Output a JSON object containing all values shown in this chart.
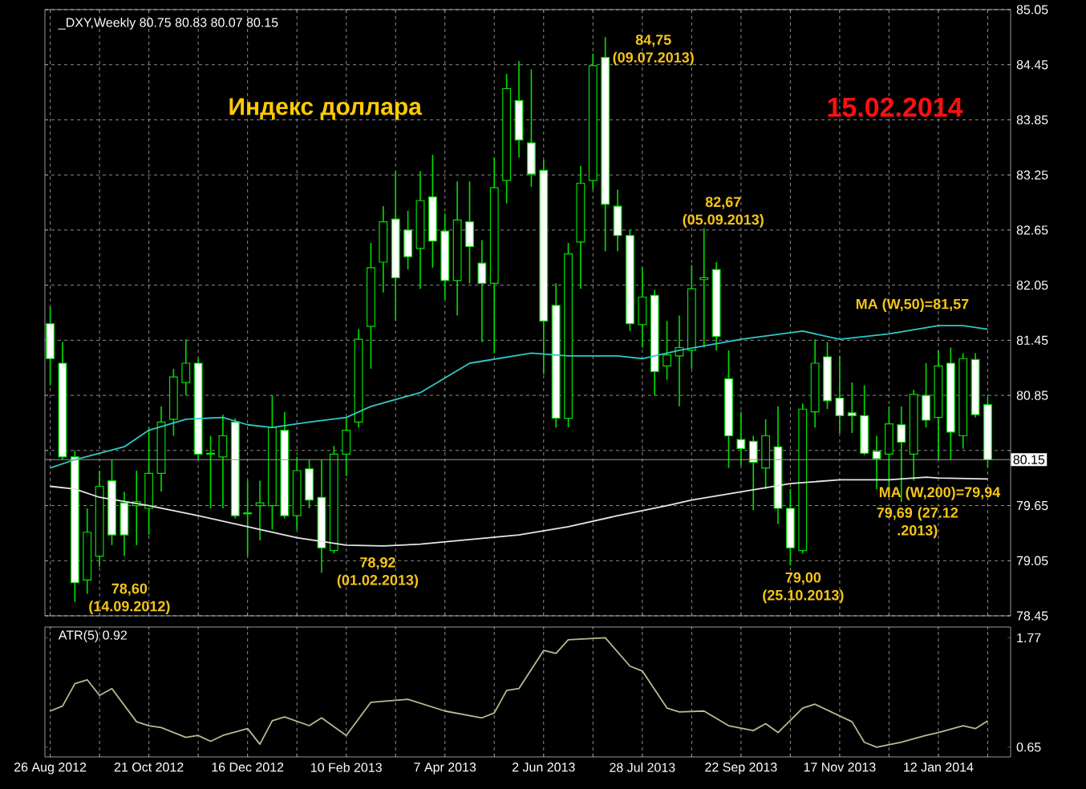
{
  "chart_data": [
    {
      "type": "candlestick",
      "title": "_DXY,Weekly 80.75 80.83 80.07 80.15",
      "x": [
        "2012-08-26",
        "2012-09-02",
        "2012-09-09",
        "2012-09-16",
        "2012-09-23",
        "2012-09-30",
        "2012-10-07",
        "2012-10-14",
        "2012-10-21",
        "2012-10-28",
        "2012-11-04",
        "2012-11-11",
        "2012-11-18",
        "2012-11-25",
        "2012-12-02",
        "2012-12-09",
        "2012-12-16",
        "2012-12-23",
        "2012-12-30",
        "2013-01-06",
        "2013-01-13",
        "2013-01-20",
        "2013-01-27",
        "2013-02-03",
        "2013-02-10",
        "2013-02-17",
        "2013-02-24",
        "2013-03-03",
        "2013-03-10",
        "2013-03-17",
        "2013-03-24",
        "2013-03-31",
        "2013-04-07",
        "2013-04-14",
        "2013-04-21",
        "2013-04-28",
        "2013-05-05",
        "2013-05-12",
        "2013-05-19",
        "2013-05-26",
        "2013-06-02",
        "2013-06-09",
        "2013-06-16",
        "2013-06-23",
        "2013-06-30",
        "2013-07-07",
        "2013-07-14",
        "2013-07-21",
        "2013-07-28",
        "2013-08-04",
        "2013-08-11",
        "2013-08-18",
        "2013-08-25",
        "2013-09-01",
        "2013-09-08",
        "2013-09-15",
        "2013-09-22",
        "2013-09-29",
        "2013-10-06",
        "2013-10-13",
        "2013-10-20",
        "2013-10-27",
        "2013-11-03",
        "2013-11-10",
        "2013-11-17",
        "2013-11-24",
        "2013-12-01",
        "2013-12-08",
        "2013-12-15",
        "2013-12-22",
        "2013-12-29",
        "2014-01-05",
        "2014-01-12",
        "2014-01-19",
        "2014-01-26",
        "2014-02-02",
        "2014-02-09"
      ],
      "ohlc": [
        [
          81.63,
          81.81,
          80.96,
          81.25
        ],
        [
          81.2,
          81.43,
          80.15,
          80.18
        ],
        [
          80.18,
          80.25,
          78.6,
          78.81
        ],
        [
          78.84,
          79.62,
          78.69,
          79.36
        ],
        [
          79.1,
          80.03,
          78.98,
          79.86
        ],
        [
          79.92,
          80.15,
          79.22,
          79.33
        ],
        [
          79.68,
          79.8,
          79.1,
          79.33
        ],
        [
          79.65,
          80.03,
          79.22,
          79.69
        ],
        [
          79.62,
          80.5,
          79.33,
          80.0
        ],
        [
          80.0,
          80.73,
          79.8,
          80.56
        ],
        [
          80.59,
          81.14,
          80.41,
          81.05
        ],
        [
          80.99,
          81.46,
          80.85,
          81.2
        ],
        [
          81.2,
          81.25,
          80.15,
          80.21
        ],
        [
          80.22,
          80.41,
          79.62,
          80.21
        ],
        [
          80.18,
          80.64,
          79.62,
          80.41
        ],
        [
          80.56,
          80.6,
          79.51,
          79.54
        ],
        [
          79.57,
          79.92,
          79.1,
          79.56
        ],
        [
          79.65,
          79.92,
          79.27,
          79.68
        ],
        [
          79.65,
          80.85,
          79.39,
          80.5
        ],
        [
          80.47,
          80.67,
          79.51,
          79.54
        ],
        [
          79.54,
          80.18,
          79.39,
          80.03
        ],
        [
          80.05,
          80.15,
          79.62,
          79.71
        ],
        [
          79.74,
          80.15,
          78.92,
          79.19
        ],
        [
          79.16,
          80.3,
          79.13,
          80.21
        ],
        [
          80.21,
          80.61,
          79.97,
          80.47
        ],
        [
          80.56,
          81.57,
          80.5,
          81.46
        ],
        [
          81.6,
          82.51,
          81.14,
          82.24
        ],
        [
          82.3,
          82.91,
          81.97,
          82.74
        ],
        [
          82.77,
          83.29,
          81.66,
          82.13
        ],
        [
          82.65,
          82.86,
          82.22,
          82.36
        ],
        [
          82.45,
          83.29,
          82.01,
          82.97
        ],
        [
          83.01,
          83.47,
          82.24,
          82.53
        ],
        [
          82.64,
          82.83,
          81.89,
          82.1
        ],
        [
          82.1,
          83.18,
          81.72,
          82.76
        ],
        [
          82.74,
          83.18,
          82.07,
          82.47
        ],
        [
          82.29,
          82.54,
          81.43,
          82.07
        ],
        [
          82.07,
          83.44,
          81.31,
          83.11
        ],
        [
          83.19,
          84.35,
          82.94,
          84.19
        ],
        [
          84.06,
          84.49,
          83.44,
          83.63
        ],
        [
          83.6,
          84.4,
          83.12,
          83.26
        ],
        [
          83.3,
          83.41,
          81.08,
          81.66
        ],
        [
          81.83,
          82.07,
          80.5,
          80.6
        ],
        [
          80.6,
          82.51,
          80.5,
          82.39
        ],
        [
          82.52,
          83.35,
          82.01,
          83.16
        ],
        [
          83.19,
          84.57,
          83.09,
          84.44
        ],
        [
          84.53,
          84.75,
          82.42,
          82.93
        ],
        [
          82.91,
          83.09,
          82.42,
          82.59
        ],
        [
          82.59,
          82.65,
          81.55,
          81.63
        ],
        [
          81.62,
          82.24,
          81.37,
          81.92
        ],
        [
          81.94,
          82.0,
          80.85,
          81.11
        ],
        [
          81.17,
          81.66,
          81.02,
          81.29
        ],
        [
          81.28,
          81.72,
          80.73,
          81.37
        ],
        [
          81.34,
          82.27,
          81.14,
          82.01
        ],
        [
          82.11,
          82.67,
          81.37,
          82.13
        ],
        [
          82.22,
          82.3,
          81.34,
          81.49
        ],
        [
          81.03,
          81.34,
          80.06,
          80.41
        ],
        [
          80.37,
          80.67,
          80.09,
          80.27
        ],
        [
          80.35,
          80.41,
          79.6,
          80.12
        ],
        [
          80.06,
          80.59,
          79.83,
          80.41
        ],
        [
          80.29,
          80.73,
          79.45,
          79.62
        ],
        [
          79.62,
          79.83,
          79.0,
          79.19
        ],
        [
          79.16,
          80.76,
          79.13,
          80.7
        ],
        [
          80.67,
          81.46,
          80.5,
          81.2
        ],
        [
          81.27,
          81.43,
          80.7,
          80.79
        ],
        [
          80.82,
          81.28,
          80.44,
          80.63
        ],
        [
          80.66,
          80.99,
          80.44,
          80.63
        ],
        [
          80.63,
          80.96,
          80.2,
          80.22
        ],
        [
          80.24,
          80.41,
          79.83,
          80.16
        ],
        [
          80.21,
          80.73,
          79.86,
          80.54
        ],
        [
          80.53,
          80.73,
          79.69,
          80.34
        ],
        [
          80.21,
          80.91,
          79.92,
          80.86
        ],
        [
          80.85,
          81.2,
          80.5,
          80.58
        ],
        [
          80.61,
          81.34,
          80.15,
          81.17
        ],
        [
          81.2,
          81.37,
          80.15,
          80.45
        ],
        [
          80.41,
          81.31,
          80.27,
          81.25
        ],
        [
          81.24,
          81.31,
          80.61,
          80.64
        ],
        [
          80.75,
          80.83,
          80.07,
          80.15
        ]
      ],
      "series": [
        {
          "type": "line",
          "color": "#2ec8c8",
          "x": [
            "2012-08-26",
            "2012-09-09",
            "2012-10-07",
            "2012-10-21",
            "2012-11-11",
            "2012-12-02",
            "2012-12-16",
            "2012-12-30",
            "2013-01-20",
            "2013-02-10",
            "2013-02-24",
            "2013-03-24",
            "2013-04-21",
            "2013-05-26",
            "2013-06-16",
            "2013-07-14",
            "2013-07-28",
            "2013-08-18",
            "2013-09-22",
            "2013-10-27",
            "2013-11-17",
            "2013-12-15",
            "2014-01-12",
            "2014-01-26",
            "2014-02-09"
          ],
          "values": [
            80.06,
            80.15,
            80.29,
            80.47,
            80.59,
            80.61,
            80.53,
            80.5,
            80.56,
            80.61,
            80.73,
            80.88,
            81.2,
            81.31,
            81.28,
            81.28,
            81.25,
            81.34,
            81.46,
            81.55,
            81.46,
            81.52,
            81.61,
            81.61,
            81.57
          ]
        },
        {
          "type": "line",
          "color": "#e6e6e6",
          "x": [
            "2012-08-26",
            "2012-09-09",
            "2012-09-23",
            "2012-10-21",
            "2012-11-18",
            "2012-12-16",
            "2013-01-13",
            "2013-02-10",
            "2013-03-03",
            "2013-03-24",
            "2013-04-21",
            "2013-05-19",
            "2013-06-16",
            "2013-07-14",
            "2013-08-11",
            "2013-08-25",
            "2013-09-22",
            "2013-10-20",
            "2013-11-17",
            "2013-12-15",
            "2014-01-05",
            "2014-01-12",
            "2014-02-09"
          ],
          "values": [
            79.86,
            79.83,
            79.74,
            79.65,
            79.54,
            79.42,
            79.3,
            79.22,
            79.21,
            79.23,
            79.28,
            79.33,
            79.42,
            79.54,
            79.65,
            79.71,
            79.8,
            79.89,
            79.93,
            79.93,
            79.96,
            79.95,
            79.94
          ]
        }
      ],
      "xlim": [
        "2012-08-23",
        "2014-02-22"
      ],
      "xticks": [
        {
          "value": "2012-08-26",
          "label": null
        },
        {
          "value": "2012-09-23",
          "label": null
        },
        {
          "value": "2012-10-21",
          "label": null
        },
        {
          "value": "2012-11-18",
          "label": null
        },
        {
          "value": "2012-12-16",
          "label": null
        },
        {
          "value": "2013-01-13",
          "label": null
        },
        {
          "value": "2013-02-10",
          "label": null
        },
        {
          "value": "2013-03-10",
          "label": null
        },
        {
          "value": "2013-04-07",
          "label": null
        },
        {
          "value": "2013-05-05",
          "label": null
        },
        {
          "value": "2013-06-02",
          "label": null
        },
        {
          "value": "2013-06-30",
          "label": null
        },
        {
          "value": "2013-07-28",
          "label": null
        },
        {
          "value": "2013-08-25",
          "label": null
        },
        {
          "value": "2013-09-22",
          "label": null
        },
        {
          "value": "2013-10-20",
          "label": null
        },
        {
          "value": "2013-11-17",
          "label": null
        },
        {
          "value": "2013-12-15",
          "label": null
        },
        {
          "value": "2014-01-12",
          "label": null
        },
        {
          "value": "2014-02-09",
          "label": null
        }
      ],
      "ylim": [
        78.45,
        85.05
      ],
      "yticks": [
        78.45,
        79.05,
        79.65,
        {
          "value": 80.25,
          "label": null
        },
        80.85,
        81.45,
        82.05,
        82.65,
        83.25,
        83.85,
        84.45,
        85.05
      ],
      "tick_labels": "y",
      "grid": true,
      "ref_lines": [
        {
          "axis": "y",
          "value": 80.15,
          "label": "80.15",
          "color": "#9a9a9a"
        }
      ],
      "annotations": [
        "Индекс доллара",
        "15.02.2014",
        {
          "text": "78,60 (14.09.2012)",
          "x": "2012-09-09",
          "y": 78.6
        },
        {
          "text": "78,92 (01.02.2013)",
          "x": "2013-01-27",
          "y": 78.92
        },
        {
          "text": "84,75 (09.07.2013)",
          "x": "2013-07-07",
          "y": 84.75
        },
        {
          "text": "82,67 (05.09.2013)",
          "x": "2013-09-01",
          "y": 82.67
        },
        {
          "text": "79,00 (25.10.2013)",
          "x": "2013-10-20",
          "y": 79.0
        },
        {
          "text": "79,69 (27.12 .2013)",
          "x": "2013-12-22",
          "y": 79.69
        },
        {
          "text": "MA (W,50)=81,57",
          "x": "2014-02-09",
          "y": 81.57
        },
        {
          "text": "MA (W,200)=79,94",
          "x": "2014-02-09",
          "y": 79.94
        }
      ]
    },
    {
      "type": "line",
      "title": "ATR(5) 0.92",
      "color": "#b8b890",
      "x": [
        "2012-08-26",
        "2012-09-02",
        "2012-09-09",
        "2012-09-16",
        "2012-09-23",
        "2012-09-30",
        "2012-10-14",
        "2012-10-21",
        "2012-10-28",
        "2012-11-11",
        "2012-11-18",
        "2012-11-25",
        "2012-12-02",
        "2012-12-16",
        "2012-12-23",
        "2012-12-30",
        "2013-01-06",
        "2013-01-20",
        "2013-01-27",
        "2013-02-10",
        "2013-02-24",
        "2013-03-17",
        "2013-04-07",
        "2013-04-28",
        "2013-05-05",
        "2013-05-12",
        "2013-05-19",
        "2013-06-02",
        "2013-06-09",
        "2013-06-16",
        "2013-07-07",
        "2013-07-21",
        "2013-07-28",
        "2013-08-11",
        "2013-08-18",
        "2013-09-01",
        "2013-09-15",
        "2013-09-29",
        "2013-10-06",
        "2013-10-13",
        "2013-10-27",
        "2013-11-03",
        "2013-11-24",
        "2013-12-01",
        "2013-12-08",
        "2013-12-22",
        "2014-01-05",
        "2014-01-12",
        "2014-01-26",
        "2014-02-02",
        "2014-02-09"
      ],
      "values": [
        1.02,
        1.07,
        1.3,
        1.34,
        1.18,
        1.25,
        0.91,
        0.87,
        0.85,
        0.75,
        0.77,
        0.71,
        0.77,
        0.84,
        0.68,
        0.92,
        0.96,
        0.87,
        0.95,
        0.77,
        1.11,
        1.14,
        1.02,
        0.95,
        1.0,
        1.23,
        1.25,
        1.64,
        1.61,
        1.75,
        1.77,
        1.48,
        1.43,
        1.05,
        1.01,
        1.02,
        0.87,
        0.82,
        0.89,
        0.8,
        1.05,
        1.09,
        0.91,
        0.7,
        0.65,
        0.7,
        0.77,
        0.8,
        0.87,
        0.84,
        0.92
      ],
      "xlim": [
        "2012-08-23",
        "2014-02-22"
      ],
      "xticks": [
        {
          "value": "2012-08-26",
          "label": "26 Aug 2012"
        },
        {
          "value": "2012-09-23",
          "label": null
        },
        {
          "value": "2012-10-21",
          "label": "21 Oct 2012"
        },
        {
          "value": "2012-11-18",
          "label": null
        },
        {
          "value": "2012-12-16",
          "label": "16 Dec 2012"
        },
        {
          "value": "2013-01-13",
          "label": null
        },
        {
          "value": "2013-02-10",
          "label": "10 Feb 2013"
        },
        {
          "value": "2013-03-10",
          "label": null
        },
        {
          "value": "2013-04-07",
          "label": "7 Apr 2013"
        },
        {
          "value": "2013-05-05",
          "label": null
        },
        {
          "value": "2013-06-02",
          "label": "2 Jun 2013"
        },
        {
          "value": "2013-06-30",
          "label": null
        },
        {
          "value": "2013-07-28",
          "label": "28 Jul 2013"
        },
        {
          "value": "2013-08-25",
          "label": null
        },
        {
          "value": "2013-09-22",
          "label": "22 Sep 2013"
        },
        {
          "value": "2013-10-20",
          "label": null
        },
        {
          "value": "2013-11-17",
          "label": "17 Nov 2013"
        },
        {
          "value": "2013-12-15",
          "label": null
        },
        {
          "value": "2014-01-12",
          "label": "12 Jan 2014"
        },
        {
          "value": "2014-02-09",
          "label": null
        }
      ],
      "ylim": [
        0.55,
        1.88
      ],
      "yticks": [
        0.65,
        1.77
      ],
      "grid": "x"
    }
  ]
}
